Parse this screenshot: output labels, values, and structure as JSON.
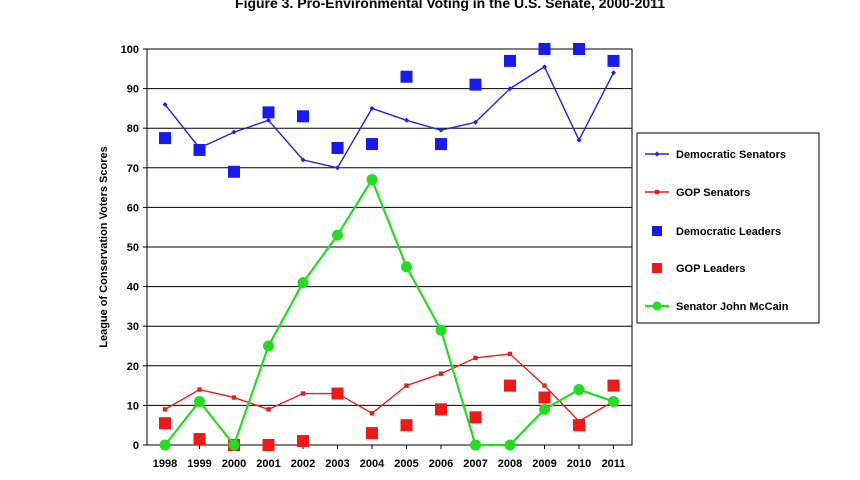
{
  "chart_data": {
    "type": "line",
    "title": "Figure 3. Pro-Environmental Voting in the U.S. Senate, 2000-2011",
    "xlabel": "",
    "ylabel": "League of Conservation Voters Scores",
    "categories": [
      "1998",
      "1999",
      "2000",
      "2001",
      "2002",
      "2003",
      "2004",
      "2005",
      "2006",
      "2007",
      "2008",
      "2009",
      "2010",
      "2011"
    ],
    "ylim": [
      0,
      100
    ],
    "yticks": [
      0,
      10,
      20,
      30,
      40,
      50,
      60,
      70,
      80,
      90,
      100
    ],
    "grid": "horizontal",
    "legend_position": "right",
    "series": [
      {
        "name": "Democratic Senators",
        "style": "line-small-diamond",
        "color": "#2222dd",
        "values": [
          86,
          75,
          79,
          82,
          72,
          70,
          85,
          82,
          79.5,
          81.5,
          90,
          95.5,
          77,
          94
        ]
      },
      {
        "name": "GOP Senators",
        "style": "line-small-square",
        "color": "#e02020",
        "values": [
          9,
          14,
          12,
          9,
          13,
          13,
          8,
          15,
          18,
          22,
          23,
          15,
          6,
          11
        ]
      },
      {
        "name": "Democratic Leaders",
        "style": "marker-square",
        "color": "#1a1aee",
        "values": [
          77.5,
          74.5,
          69,
          84,
          83,
          75,
          76,
          93,
          76,
          91,
          97,
          100,
          100,
          97
        ]
      },
      {
        "name": "GOP Leaders",
        "style": "marker-square",
        "color": "#ee1a1a",
        "values": [
          5.5,
          1.5,
          0,
          0,
          1,
          13,
          3,
          5,
          9,
          7,
          15,
          12,
          5,
          15
        ]
      },
      {
        "name": "Senator John McCain",
        "style": "line-circle",
        "color": "#22dd22",
        "values": [
          0,
          11,
          0,
          25,
          41,
          53,
          67,
          45,
          29,
          0,
          0,
          9,
          14,
          11
        ]
      }
    ]
  }
}
